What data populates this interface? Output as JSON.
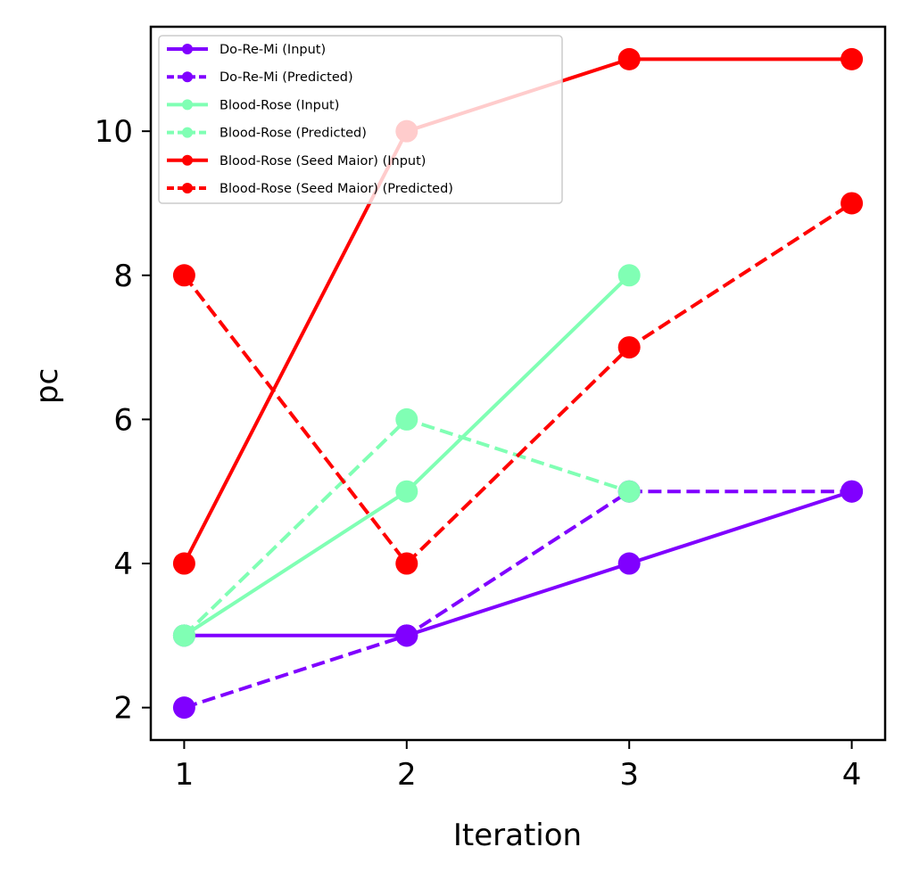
{
  "chart_data": {
    "type": "line",
    "title": "",
    "xlabel": "Iteration",
    "ylabel": "pc",
    "x": [
      1,
      2,
      3,
      4
    ],
    "xticks": [
      "1",
      "2",
      "3",
      "4"
    ],
    "yticks": [
      "2",
      "4",
      "6",
      "8",
      "10"
    ],
    "xlim": [
      0.85,
      4.15
    ],
    "ylim": [
      1.55,
      11.45
    ],
    "grid": false,
    "legend_position": "top-left",
    "series": [
      {
        "name": "Do-Re-Mi (Input)",
        "color": "#8000ff",
        "style": "solid",
        "points": [
          [
            1,
            3
          ],
          [
            2,
            3
          ],
          [
            3,
            4
          ],
          [
            4,
            5
          ]
        ]
      },
      {
        "name": "Do-Re-Mi (Predicted)",
        "color": "#8000ff",
        "style": "dashed",
        "points": [
          [
            1,
            2
          ],
          [
            2,
            3
          ],
          [
            3,
            5
          ],
          [
            4,
            5
          ]
        ]
      },
      {
        "name": "Blood-Rose (Input)",
        "color": "#80ffb4",
        "style": "solid",
        "points": [
          [
            1,
            3
          ],
          [
            2,
            5
          ],
          [
            3,
            8
          ]
        ]
      },
      {
        "name": "Blood-Rose (Predicted)",
        "color": "#80ffb4",
        "style": "dashed",
        "points": [
          [
            1,
            3
          ],
          [
            2,
            6
          ],
          [
            3,
            5
          ]
        ]
      },
      {
        "name": "Blood-Rose (Seed Maior) (Input)",
        "color": "#ff0000",
        "style": "solid",
        "points": [
          [
            1,
            4
          ],
          [
            2,
            10
          ],
          [
            3,
            11
          ],
          [
            4,
            11
          ]
        ]
      },
      {
        "name": "Blood-Rose (Seed Maior) (Predicted)",
        "color": "#ff0000",
        "style": "dashed",
        "points": [
          [
            1,
            8
          ],
          [
            2,
            4
          ],
          [
            3,
            7
          ],
          [
            4,
            9
          ]
        ]
      }
    ]
  }
}
